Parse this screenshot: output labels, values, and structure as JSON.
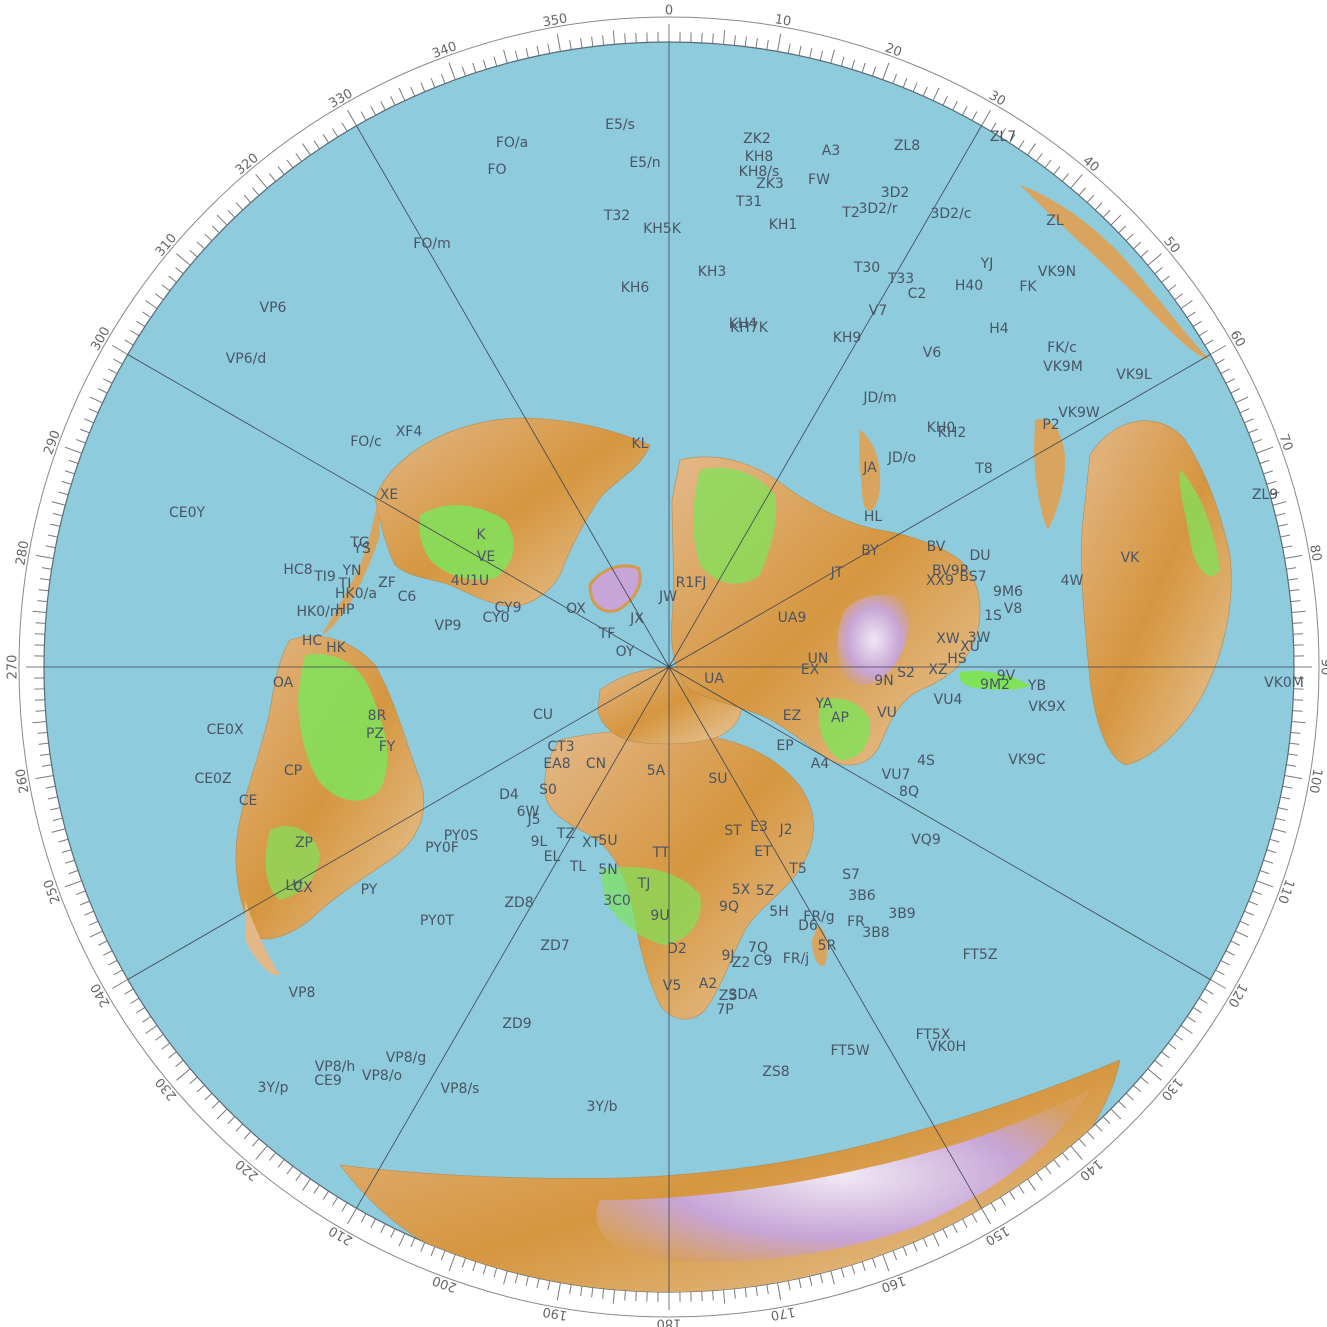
{
  "map": {
    "projection": "azimuthal equidistant",
    "colors": {
      "ocean": "#8ecbdc",
      "land_low": "#7fe35a",
      "land_mid": "#e0b27d",
      "land_high": "#d7902f",
      "ice": "#c8a7d4",
      "ice_light": "#e9dff0"
    },
    "bearing_labels": [
      "0",
      "10",
      "20",
      "30",
      "40",
      "50",
      "60",
      "70",
      "80",
      "90",
      "100",
      "110",
      "120",
      "130",
      "140",
      "150",
      "160",
      "170",
      "180",
      "190",
      "200",
      "210",
      "220",
      "230",
      "240",
      "250",
      "260",
      "270",
      "280",
      "290",
      "300",
      "310",
      "320",
      "330",
      "340",
      "350"
    ],
    "prefixes": [
      {
        "t": "E5/s",
        "b": 0
      },
      {
        "t": "FO/a",
        "b": 0
      },
      {
        "t": "FO",
        "b": 0
      },
      {
        "t": "E5/n",
        "b": 0
      },
      {
        "t": "ZK2",
        "b": 0
      },
      {
        "t": "KH8",
        "b": 0
      },
      {
        "t": "KH8/s",
        "b": 0
      },
      {
        "t": "A3",
        "b": 0
      },
      {
        "t": "ZL8",
        "b": 0
      },
      {
        "t": "ZL7",
        "b": 0
      },
      {
        "t": "ZK3",
        "b": 0
      },
      {
        "t": "FW",
        "b": 0
      },
      {
        "t": "3D2",
        "b": 0
      },
      {
        "t": "T31",
        "b": 0
      },
      {
        "t": "T32",
        "b": 0
      },
      {
        "t": "KH5K",
        "b": 0
      },
      {
        "t": "KH1",
        "b": 0
      },
      {
        "t": "T2",
        "b": 0
      },
      {
        "t": "3D2/r",
        "b": 0
      },
      {
        "t": "3D2/c",
        "b": 0
      },
      {
        "t": "ZL",
        "b": 0
      },
      {
        "t": "FO/m",
        "b": 0
      },
      {
        "t": "KH3",
        "b": 0
      },
      {
        "t": "T30",
        "b": 0
      },
      {
        "t": "YJ",
        "b": 0
      },
      {
        "t": "VK9N",
        "b": 0
      },
      {
        "t": "T33",
        "b": 0
      },
      {
        "t": "C2",
        "b": 0
      },
      {
        "t": "H40",
        "b": 0
      },
      {
        "t": "FK",
        "b": 0
      },
      {
        "t": "KH6",
        "b": 0
      },
      {
        "t": "VP6",
        "b": 0
      },
      {
        "t": "V7",
        "b": 0
      },
      {
        "t": "KH4",
        "b": 0
      },
      {
        "t": "KH7K",
        "b": 0
      },
      {
        "t": "H4",
        "b": 0
      },
      {
        "t": "KH9",
        "b": 0
      },
      {
        "t": "FK/c",
        "b": 0
      },
      {
        "t": "VP6/d",
        "b": 0
      },
      {
        "t": "V6",
        "b": 0
      },
      {
        "t": "VK9M",
        "b": 0
      },
      {
        "t": "VK9L",
        "b": 0
      },
      {
        "t": "JD/m",
        "b": 0
      },
      {
        "t": "VK9W",
        "b": 0
      },
      {
        "t": "P2",
        "b": 0
      },
      {
        "t": "FO/c",
        "b": 0
      },
      {
        "t": "XF4",
        "b": 0
      },
      {
        "t": "KL",
        "b": 0
      },
      {
        "t": "KH0",
        "b": 0
      },
      {
        "t": "KH2",
        "b": 0
      },
      {
        "t": "JD/o",
        "b": 0
      },
      {
        "t": "JA",
        "b": 0
      },
      {
        "t": "T8",
        "b": 0
      },
      {
        "t": "ZL9",
        "b": 0
      },
      {
        "t": "XE",
        "b": 0
      },
      {
        "t": "CE0Y",
        "b": 0
      },
      {
        "t": "K",
        "b": 0
      },
      {
        "t": "HL",
        "b": 0
      },
      {
        "t": "BY",
        "b": 0
      },
      {
        "t": "BV",
        "b": 0
      },
      {
        "t": "DU",
        "b": 0
      },
      {
        "t": "TG",
        "b": 0
      },
      {
        "t": "YS",
        "b": 0
      },
      {
        "t": "HC8",
        "b": 0
      },
      {
        "t": "TI9",
        "b": 0
      },
      {
        "t": "YN",
        "b": 0
      },
      {
        "t": "VE",
        "b": 0
      },
      {
        "t": "BV9P",
        "b": 0
      },
      {
        "t": "BS7",
        "b": 0
      },
      {
        "t": "VK",
        "b": 0
      },
      {
        "t": "TI",
        "b": 0
      },
      {
        "t": "ZF",
        "b": 0
      },
      {
        "t": "4U1U",
        "b": 0
      },
      {
        "t": "R1FJ",
        "b": 0
      },
      {
        "t": "JT",
        "b": 0
      },
      {
        "t": "XX9",
        "b": 0
      },
      {
        "t": "9M6",
        "b": 0
      },
      {
        "t": "4W",
        "b": 0
      },
      {
        "t": "HK0/a",
        "b": 0
      },
      {
        "t": "C6",
        "b": 0
      },
      {
        "t": "JW",
        "b": 0
      },
      {
        "t": "HK0/m",
        "b": 0
      },
      {
        "t": "HP",
        "b": 0
      },
      {
        "t": "CY9",
        "b": 0
      },
      {
        "t": "OX",
        "b": 0
      },
      {
        "t": "CY0",
        "b": 0
      },
      {
        "t": "UA9",
        "b": 0
      },
      {
        "t": "1S",
        "b": 0
      },
      {
        "t": "V8",
        "b": 0
      },
      {
        "t": "VP9",
        "b": 0
      },
      {
        "t": "JX",
        "b": 0
      },
      {
        "t": "TF",
        "b": 0
      },
      {
        "t": "XW",
        "b": 0
      },
      {
        "t": "3W",
        "b": 0
      },
      {
        "t": "XU",
        "b": 0
      },
      {
        "t": "HC",
        "b": 0
      },
      {
        "t": "HK",
        "b": 0
      },
      {
        "t": "OY",
        "b": 0
      },
      {
        "t": "HS",
        "b": 0
      },
      {
        "t": "UN",
        "b": 0
      },
      {
        "t": "XZ",
        "b": 0
      },
      {
        "t": "9V",
        "b": 0
      },
      {
        "t": "OA",
        "b": 0
      },
      {
        "t": "UA",
        "b": 0
      },
      {
        "t": "EX",
        "b": 0
      },
      {
        "t": "9N",
        "b": 0
      },
      {
        "t": "S2",
        "b": 0
      },
      {
        "t": "9M2",
        "b": 0
      },
      {
        "t": "YB",
        "b": 0
      },
      {
        "t": "VK0M",
        "b": 0
      },
      {
        "t": "EZ",
        "b": 0
      },
      {
        "t": "YA",
        "b": 0
      },
      {
        "t": "VU",
        "b": 0
      },
      {
        "t": "VU4",
        "b": 0
      },
      {
        "t": "VK9X",
        "b": 0
      },
      {
        "t": "CE0X",
        "b": 0
      },
      {
        "t": "8R",
        "b": 0
      },
      {
        "t": "PZ",
        "b": 0
      },
      {
        "t": "CU",
        "b": 0
      },
      {
        "t": "FY",
        "b": 0
      },
      {
        "t": "CT3",
        "b": 0
      },
      {
        "t": "EA8",
        "b": 0
      },
      {
        "t": "CN",
        "b": 0
      },
      {
        "t": "5A",
        "b": 0
      },
      {
        "t": "SU",
        "b": 0
      },
      {
        "t": "EP",
        "b": 0
      },
      {
        "t": "AP",
        "b": 0
      },
      {
        "t": "A4",
        "b": 0
      },
      {
        "t": "4S",
        "b": 0
      },
      {
        "t": "VK9C",
        "b": 0
      },
      {
        "t": "CP",
        "b": 0
      },
      {
        "t": "CE0Z",
        "b": 0
      },
      {
        "t": "VU7",
        "b": 0
      },
      {
        "t": "8Q",
        "b": 0
      },
      {
        "t": "CE",
        "b": 0
      },
      {
        "t": "D4",
        "b": 0
      },
      {
        "t": "S0",
        "b": 0
      },
      {
        "t": "VQ9",
        "b": 0
      },
      {
        "t": "ST",
        "b": 0
      },
      {
        "t": "E3",
        "b": 0
      },
      {
        "t": "J2",
        "b": 0
      },
      {
        "t": "6W",
        "b": 0
      },
      {
        "t": "J5",
        "b": 0
      },
      {
        "t": "TZ",
        "b": 0
      },
      {
        "t": "XT",
        "b": 0
      },
      {
        "t": "5U",
        "b": 0
      },
      {
        "t": "PY0S",
        "b": 0
      },
      {
        "t": "ZP",
        "b": 0
      },
      {
        "t": "PY0F",
        "b": 0
      },
      {
        "t": "9L",
        "b": 0
      },
      {
        "t": "EL",
        "b": 0
      },
      {
        "t": "TT",
        "b": 0
      },
      {
        "t": "ET",
        "b": 0
      },
      {
        "t": "T5",
        "b": 0
      },
      {
        "t": "S7",
        "b": 0
      },
      {
        "t": "TL",
        "b": 0
      },
      {
        "t": "5N",
        "b": 0
      },
      {
        "t": "TJ",
        "b": 0
      },
      {
        "t": "LU",
        "b": 0
      },
      {
        "t": "CX",
        "b": 0
      },
      {
        "t": "PY",
        "b": 0
      },
      {
        "t": "3B6",
        "b": 0
      },
      {
        "t": "5X",
        "b": 0
      },
      {
        "t": "5Z",
        "b": 0
      },
      {
        "t": "3C0",
        "b": 0
      },
      {
        "t": "ZD8",
        "b": 0
      },
      {
        "t": "9Q",
        "b": 0
      },
      {
        "t": "5H",
        "b": 0
      },
      {
        "t": "FR/g",
        "b": 0
      },
      {
        "t": "FR",
        "b": 0
      },
      {
        "t": "3B9",
        "b": 0
      },
      {
        "t": "9U",
        "b": 0
      },
      {
        "t": "PY0T",
        "b": 0
      },
      {
        "t": "D6",
        "b": 0
      },
      {
        "t": "3B8",
        "b": 0
      },
      {
        "t": "ZD7",
        "b": 0
      },
      {
        "t": "D2",
        "b": 0
      },
      {
        "t": "9J",
        "b": 0
      },
      {
        "t": "7Q",
        "b": 0
      },
      {
        "t": "5R",
        "b": 0
      },
      {
        "t": "FR/j",
        "b": 0
      },
      {
        "t": "FT5Z",
        "b": 0
      },
      {
        "t": "Z2",
        "b": 0
      },
      {
        "t": "C9",
        "b": 0
      },
      {
        "t": "VP8",
        "b": 0
      },
      {
        "t": "V5",
        "b": 0
      },
      {
        "t": "A2",
        "b": 0
      },
      {
        "t": "ZS",
        "b": 0
      },
      {
        "t": "3DA",
        "b": 0
      },
      {
        "t": "7P",
        "b": 0
      },
      {
        "t": "ZD9",
        "b": 0
      },
      {
        "t": "FT5X",
        "b": 0
      },
      {
        "t": "VK0H",
        "b": 0
      },
      {
        "t": "FT5W",
        "b": 0
      },
      {
        "t": "VP8/h",
        "b": 0
      },
      {
        "t": "VP8/g",
        "b": 0
      },
      {
        "t": "CE9",
        "b": 0
      },
      {
        "t": "VP8/o",
        "b": 0
      },
      {
        "t": "3Y/p",
        "b": 0
      },
      {
        "t": "VP8/s",
        "b": 0
      },
      {
        "t": "ZS8",
        "b": 0
      },
      {
        "t": "3Y/b",
        "b": 0
      }
    ]
  }
}
